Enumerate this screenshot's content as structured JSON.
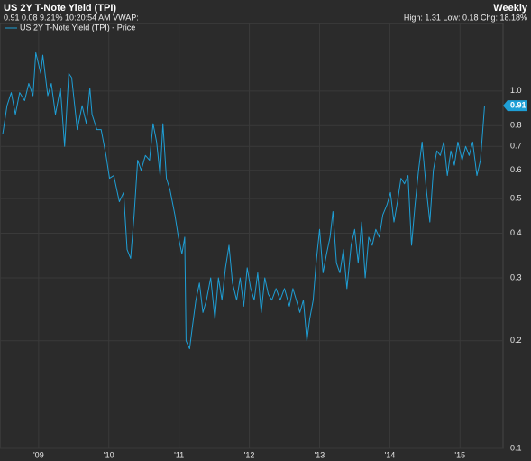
{
  "chart_data": {
    "type": "line",
    "title": "US 2Y T-Note Yield (TPI)",
    "interval": "Weekly",
    "quote_line": "0.91 0.08 9.21% 10:20:54 AM VWAP:",
    "stats_line": "High: 1.31 Low: 0.18 Chg: 18.18%",
    "log_scale": true,
    "grid": true,
    "x": [
      2008.49,
      2008.55,
      2008.61,
      2008.67,
      2008.73,
      2008.8,
      2008.86,
      2008.92,
      2008.96,
      2009.03,
      2009.06,
      2009.13,
      2009.18,
      2009.24,
      2009.31,
      2009.37,
      2009.43,
      2009.47,
      2009.55,
      2009.62,
      2009.68,
      2009.73,
      2009.76,
      2009.83,
      2009.89,
      2009.96,
      2010.01,
      2010.07,
      2010.15,
      2010.21,
      2010.26,
      2010.31,
      2010.36,
      2010.41,
      2010.46,
      2010.52,
      2010.58,
      2010.63,
      2010.68,
      2010.73,
      2010.77,
      2010.82,
      2010.87,
      2010.94,
      2010.99,
      2011.04,
      2011.08,
      2011.1,
      2011.15,
      2011.19,
      2011.24,
      2011.29,
      2011.34,
      2011.39,
      2011.45,
      2011.51,
      2011.56,
      2011.61,
      2011.66,
      2011.71,
      2011.76,
      2011.82,
      2011.87,
      2011.92,
      2011.97,
      2012.02,
      2012.07,
      2012.12,
      2012.17,
      2012.22,
      2012.27,
      2012.32,
      2012.38,
      2012.44,
      2012.5,
      2012.57,
      2012.62,
      2012.67,
      2012.72,
      2012.77,
      2012.82,
      2012.86,
      2012.91,
      2012.95,
      2013.0,
      2013.05,
      2013.1,
      2013.15,
      2013.19,
      2013.24,
      2013.29,
      2013.34,
      2013.39,
      2013.45,
      2013.5,
      2013.55,
      2013.6,
      2013.65,
      2013.7,
      2013.75,
      2013.8,
      2013.85,
      2013.9,
      2013.96,
      2014.01,
      2014.06,
      2014.11,
      2014.16,
      2014.21,
      2014.26,
      2014.31,
      2014.36,
      2014.41,
      2014.46,
      2014.52,
      2014.57,
      2014.62,
      2014.67,
      2014.72,
      2014.77,
      2014.82,
      2014.87,
      2014.92,
      2014.97,
      2015.03,
      2015.08,
      2015.13,
      2015.18,
      2015.24,
      2015.29,
      2015.32,
      2015.35
    ],
    "series": [
      {
        "name": "US 2Y T-Note Yield (TPI) - Price",
        "color": "#1e9fd6",
        "values": [
          0.76,
          0.91,
          0.99,
          0.86,
          0.99,
          0.94,
          1.05,
          0.97,
          1.28,
          1.12,
          1.26,
          0.97,
          1.05,
          0.86,
          1.02,
          0.7,
          1.12,
          1.09,
          0.78,
          0.91,
          0.81,
          1.02,
          0.86,
          0.78,
          0.78,
          0.66,
          0.57,
          0.58,
          0.49,
          0.52,
          0.36,
          0.34,
          0.45,
          0.64,
          0.6,
          0.66,
          0.64,
          0.81,
          0.72,
          0.58,
          0.81,
          0.57,
          0.53,
          0.45,
          0.39,
          0.35,
          0.39,
          0.2,
          0.19,
          0.22,
          0.26,
          0.29,
          0.24,
          0.26,
          0.3,
          0.23,
          0.3,
          0.26,
          0.32,
          0.37,
          0.29,
          0.26,
          0.3,
          0.25,
          0.32,
          0.28,
          0.26,
          0.31,
          0.24,
          0.3,
          0.27,
          0.26,
          0.28,
          0.26,
          0.28,
          0.25,
          0.28,
          0.26,
          0.24,
          0.26,
          0.2,
          0.23,
          0.26,
          0.33,
          0.41,
          0.31,
          0.35,
          0.39,
          0.46,
          0.33,
          0.31,
          0.36,
          0.28,
          0.37,
          0.41,
          0.33,
          0.43,
          0.3,
          0.39,
          0.37,
          0.41,
          0.39,
          0.45,
          0.48,
          0.52,
          0.43,
          0.49,
          0.57,
          0.55,
          0.58,
          0.37,
          0.48,
          0.6,
          0.72,
          0.53,
          0.43,
          0.6,
          0.68,
          0.66,
          0.72,
          0.58,
          0.68,
          0.62,
          0.72,
          0.64,
          0.7,
          0.66,
          0.72,
          0.58,
          0.64,
          0.76,
          0.91
        ]
      }
    ],
    "xlim": [
      2008.45,
      2015.6
    ],
    "xticks": [
      {
        "value": 2009,
        "label": "'09"
      },
      {
        "value": 2010,
        "label": "'10"
      },
      {
        "value": 2011,
        "label": "'11"
      },
      {
        "value": 2012,
        "label": "'12"
      },
      {
        "value": 2013,
        "label": "'13"
      },
      {
        "value": 2014,
        "label": "'14"
      },
      {
        "value": 2015,
        "label": "'15"
      }
    ],
    "ylim": [
      0.1,
      1.6
    ],
    "yticks": [
      0.1,
      0.2,
      0.3,
      0.4,
      0.5,
      0.6,
      0.7,
      0.8,
      {
        "value": 1,
        "label": "1.0"
      }
    ]
  }
}
